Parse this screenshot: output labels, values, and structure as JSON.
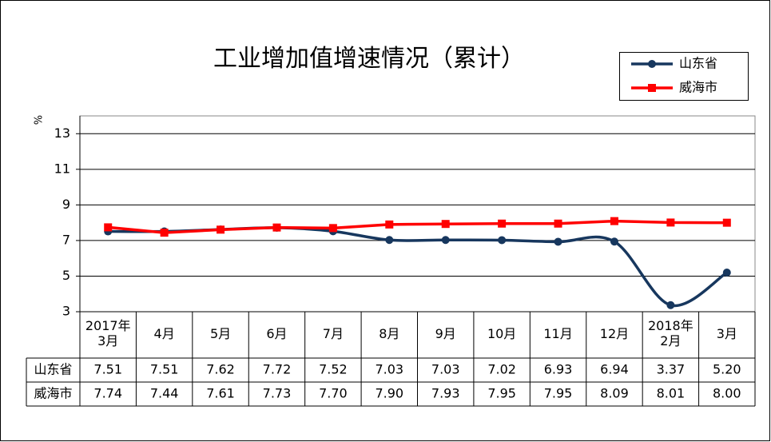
{
  "chart_data": {
    "type": "line",
    "title": "工业增加值增速情况（累计）",
    "y_label": "%",
    "categories": [
      "2017年\n3月",
      "4月",
      "5月",
      "6月",
      "7月",
      "8月",
      "9月",
      "10月",
      "11月",
      "12月",
      "2018年\n2月",
      "3月"
    ],
    "series": [
      {
        "name": "山东省",
        "color": "#17375e",
        "marker": "circle",
        "smooth": true,
        "values": [
          7.51,
          7.51,
          7.62,
          7.72,
          7.52,
          7.03,
          7.03,
          7.02,
          6.93,
          6.94,
          3.37,
          5.2
        ],
        "value_labels": [
          "7.51",
          "7.51",
          "7.62",
          "7.72",
          "7.52",
          "7.03",
          "7.03",
          "7.02",
          "6.93",
          "6.94",
          "3.37",
          "5.20"
        ]
      },
      {
        "name": "威海市",
        "color": "#ff0000",
        "marker": "square",
        "smooth": false,
        "values": [
          7.74,
          7.44,
          7.61,
          7.73,
          7.7,
          7.9,
          7.93,
          7.95,
          7.95,
          8.09,
          8.01,
          8.0
        ],
        "value_labels": [
          "7.74",
          "7.44",
          "7.61",
          "7.73",
          "7.70",
          "7.90",
          "7.93",
          "7.95",
          "7.95",
          "8.09",
          "8.01",
          "8.00"
        ]
      }
    ],
    "ylim": [
      3,
      14
    ],
    "yticks": [
      3,
      5,
      7,
      9,
      11,
      13
    ],
    "grid": true,
    "legend": "top-right",
    "data_table": true
  }
}
